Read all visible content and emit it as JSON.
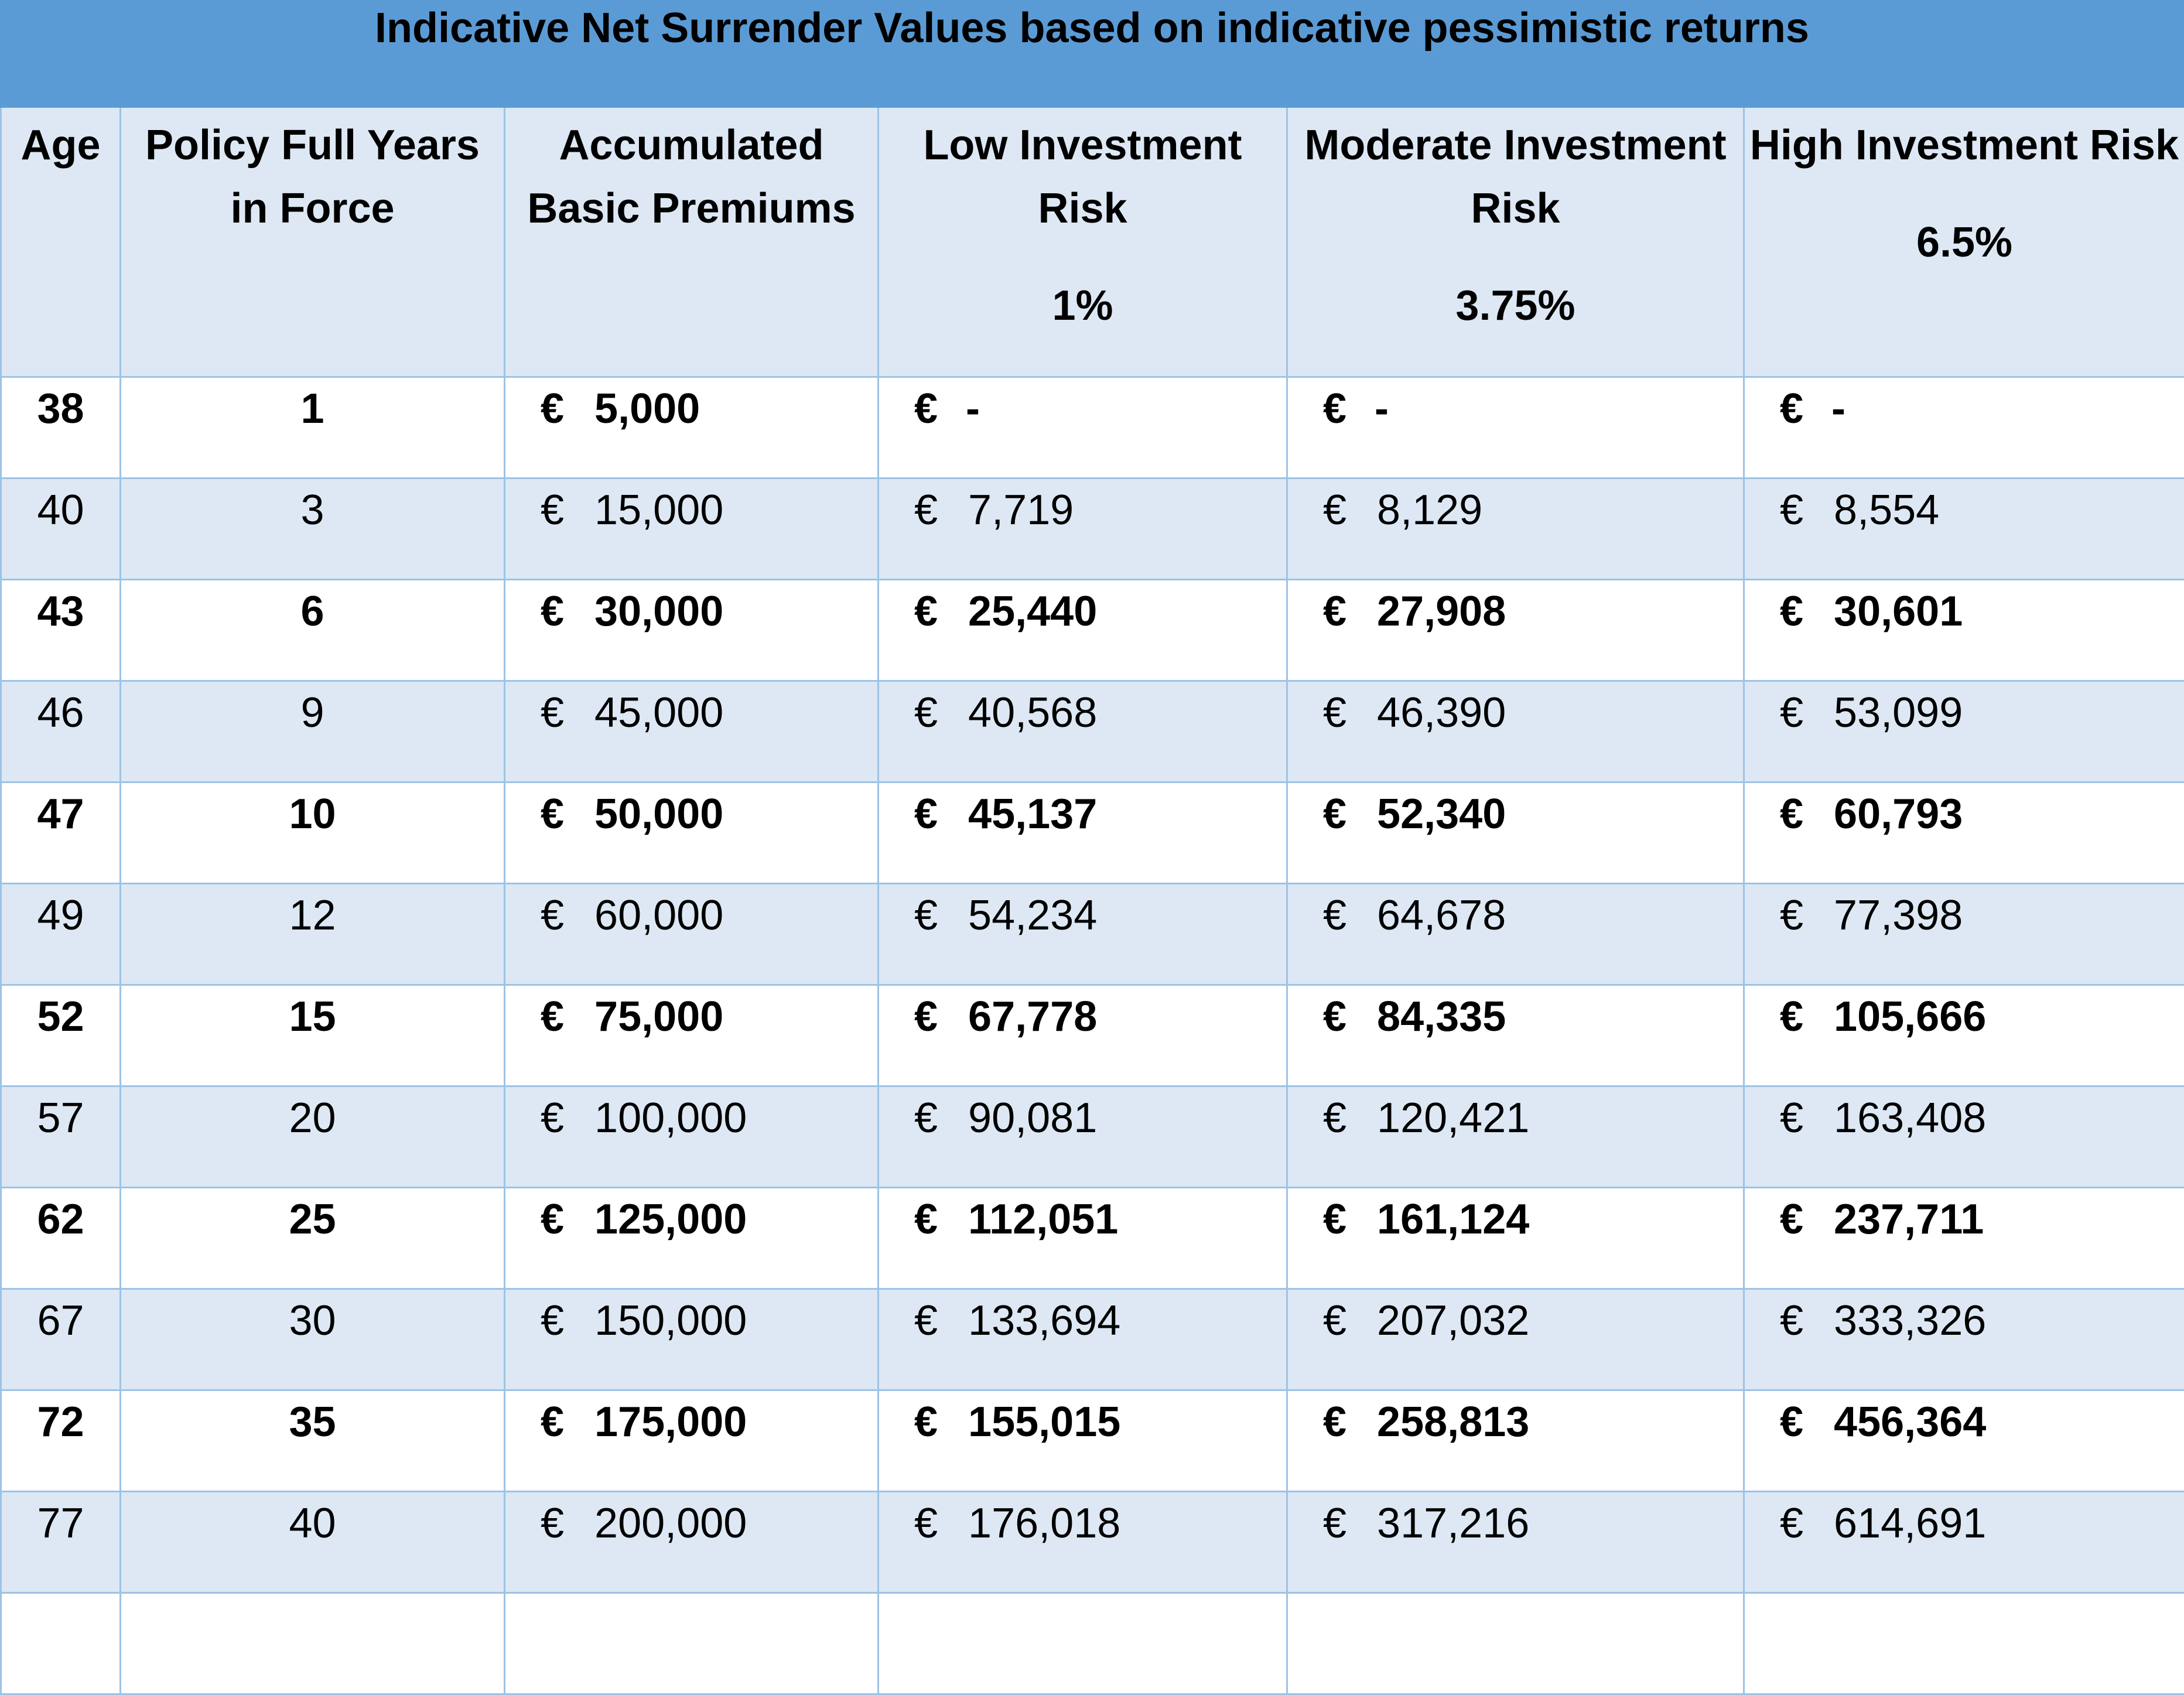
{
  "title": "Indicative Net Surrender Values based on indicative pessimistic returns",
  "colors": {
    "title_bg": "#5b9bd5",
    "row_alt": "#dde8f4",
    "border": "#9dc3e6"
  },
  "headers": [
    {
      "label": "Age",
      "rate": ""
    },
    {
      "label": "Policy Full Years in Force",
      "rate": ""
    },
    {
      "label": "Accumulated Basic Premiums",
      "rate": ""
    },
    {
      "label": "Low Investment Risk",
      "rate": "1%"
    },
    {
      "label": "Moderate Investment Risk",
      "rate": "3.75%"
    },
    {
      "label": "High Investment Risk",
      "rate": "6.5%"
    }
  ],
  "currency": "€",
  "rows": [
    {
      "age": "38",
      "years": "1",
      "premiums": "5,000",
      "low": "-",
      "moderate": "-",
      "high": "-"
    },
    {
      "age": "40",
      "years": "3",
      "premiums": "15,000",
      "low": "7,719",
      "moderate": "8,129",
      "high": "8,554"
    },
    {
      "age": "43",
      "years": "6",
      "premiums": "30,000",
      "low": "25,440",
      "moderate": "27,908",
      "high": "30,601"
    },
    {
      "age": "46",
      "years": "9",
      "premiums": "45,000",
      "low": "40,568",
      "moderate": "46,390",
      "high": "53,099"
    },
    {
      "age": "47",
      "years": "10",
      "premiums": "50,000",
      "low": "45,137",
      "moderate": "52,340",
      "high": "60,793"
    },
    {
      "age": "49",
      "years": "12",
      "premiums": "60,000",
      "low": "54,234",
      "moderate": "64,678",
      "high": "77,398"
    },
    {
      "age": "52",
      "years": "15",
      "premiums": "75,000",
      "low": "67,778",
      "moderate": "84,335",
      "high": "105,666"
    },
    {
      "age": "57",
      "years": "20",
      "premiums": "100,000",
      "low": "90,081",
      "moderate": "120,421",
      "high": "163,408"
    },
    {
      "age": "62",
      "years": "25",
      "premiums": "125,000",
      "low": "112,051",
      "moderate": "161,124",
      "high": "237,711"
    },
    {
      "age": "67",
      "years": "30",
      "premiums": "150,000",
      "low": "133,694",
      "moderate": "207,032",
      "high": "333,326"
    },
    {
      "age": "72",
      "years": "35",
      "premiums": "175,000",
      "low": "155,015",
      "moderate": "258,813",
      "high": "456,364"
    },
    {
      "age": "77",
      "years": "40",
      "premiums": "200,000",
      "low": "176,018",
      "moderate": "317,216",
      "high": "614,691"
    }
  ]
}
